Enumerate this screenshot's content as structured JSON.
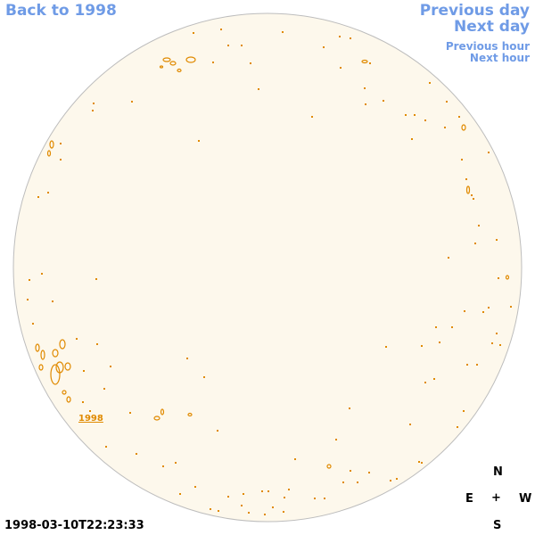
{
  "nav": {
    "back": "Back to 1998",
    "previous_day": "Previous day",
    "next_day": "Next day",
    "previous_hour": "Previous hour",
    "next_hour": "Next hour"
  },
  "timestamp": "1998-03-10T22:23:33",
  "region_label": "1998",
  "compass": {
    "north": "N",
    "east": "E",
    "center": "+",
    "west": "W",
    "south": "S"
  },
  "colors": {
    "disk_fill": "#fdf8ec",
    "disk_stroke": "#bdbdbd",
    "contour": "#e08a00",
    "link": "#6f9be6"
  }
}
